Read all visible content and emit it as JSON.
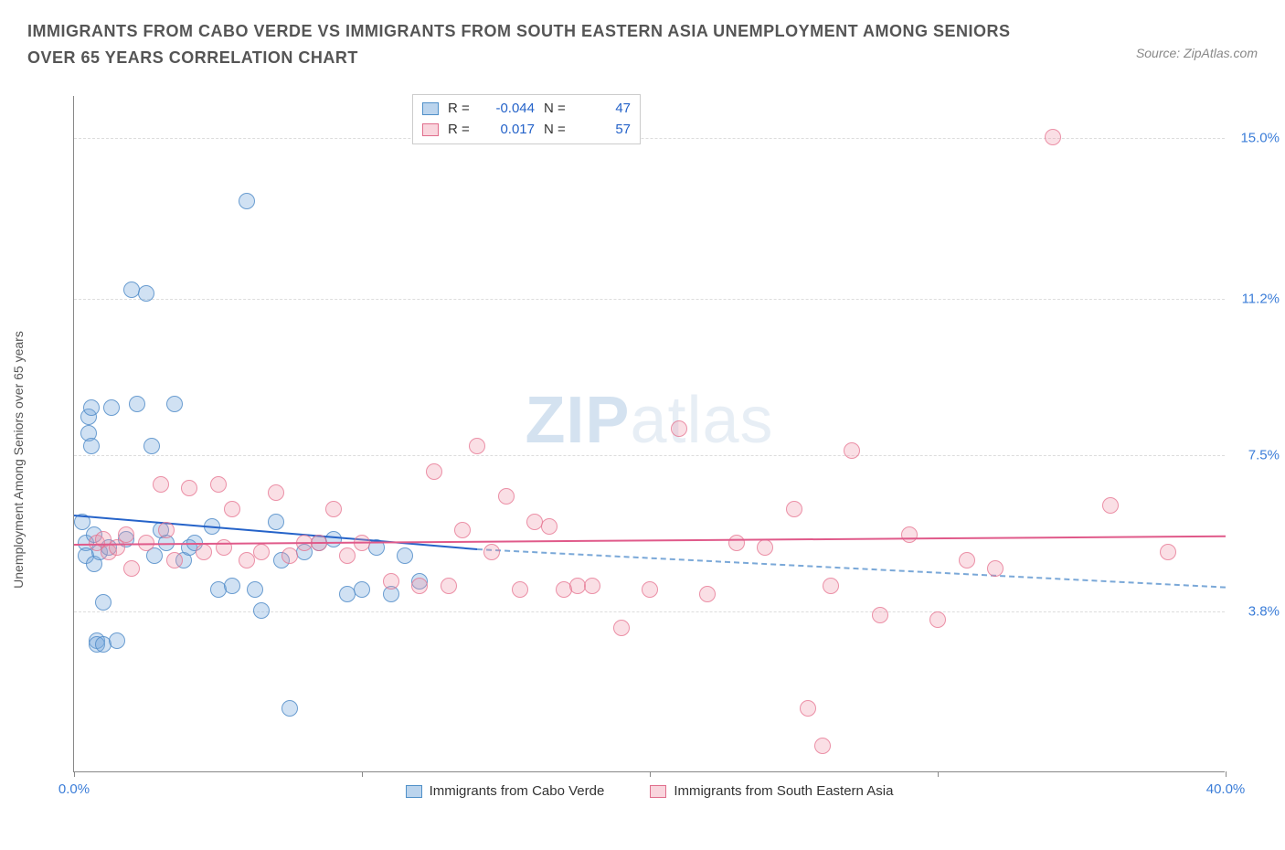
{
  "title": "IMMIGRANTS FROM CABO VERDE VS IMMIGRANTS FROM SOUTH EASTERN ASIA UNEMPLOYMENT AMONG SENIORS OVER 65 YEARS CORRELATION CHART",
  "source": "Source: ZipAtlas.com",
  "y_axis_label": "Unemployment Among Seniors over 65 years",
  "watermark_bold": "ZIP",
  "watermark_light": "atlas",
  "chart": {
    "type": "scatter",
    "xlim": [
      0,
      40
    ],
    "ylim": [
      0,
      16
    ],
    "x_ticks": [
      0,
      10,
      20,
      30,
      40
    ],
    "x_tick_labels": [
      "0.0%",
      "",
      "",
      "",
      "40.0%"
    ],
    "y_gridlines": [
      3.8,
      7.5,
      11.2,
      15.0
    ],
    "y_tick_labels": [
      "3.8%",
      "7.5%",
      "11.2%",
      "15.0%"
    ],
    "background_color": "#ffffff",
    "grid_color": "#dddddd",
    "series": [
      {
        "name": "Immigrants from Cabo Verde",
        "color_fill": "rgba(120,170,220,0.35)",
        "color_stroke": "#5090c8",
        "R": "-0.044",
        "N": "47",
        "trend": {
          "x1": 0,
          "y1": 6.1,
          "x2": 14,
          "y2": 5.3,
          "x2_dash": 40,
          "y2_dash": 4.4
        },
        "points": [
          [
            0.3,
            5.9
          ],
          [
            0.4,
            5.4
          ],
          [
            0.4,
            5.1
          ],
          [
            0.5,
            8.4
          ],
          [
            0.5,
            8.0
          ],
          [
            0.6,
            8.6
          ],
          [
            0.6,
            7.7
          ],
          [
            0.7,
            5.6
          ],
          [
            0.7,
            4.9
          ],
          [
            0.8,
            3.1
          ],
          [
            0.8,
            3.0
          ],
          [
            0.9,
            5.2
          ],
          [
            1.0,
            4.0
          ],
          [
            1.0,
            3.0
          ],
          [
            1.2,
            5.3
          ],
          [
            1.3,
            8.6
          ],
          [
            1.5,
            3.1
          ],
          [
            1.8,
            5.5
          ],
          [
            2.0,
            11.4
          ],
          [
            2.2,
            8.7
          ],
          [
            2.5,
            11.3
          ],
          [
            2.7,
            7.7
          ],
          [
            2.8,
            5.1
          ],
          [
            3.0,
            5.7
          ],
          [
            3.2,
            5.4
          ],
          [
            3.5,
            8.7
          ],
          [
            3.8,
            5.0
          ],
          [
            4.0,
            5.3
          ],
          [
            4.2,
            5.4
          ],
          [
            4.8,
            5.8
          ],
          [
            5.0,
            4.3
          ],
          [
            5.5,
            4.4
          ],
          [
            6.0,
            13.5
          ],
          [
            6.3,
            4.3
          ],
          [
            6.5,
            3.8
          ],
          [
            7.0,
            5.9
          ],
          [
            7.2,
            5.0
          ],
          [
            7.5,
            1.5
          ],
          [
            8.0,
            5.2
          ],
          [
            8.5,
            5.4
          ],
          [
            9.0,
            5.5
          ],
          [
            9.5,
            4.2
          ],
          [
            10.0,
            4.3
          ],
          [
            10.5,
            5.3
          ],
          [
            11.0,
            4.2
          ],
          [
            11.5,
            5.1
          ],
          [
            12.0,
            4.5
          ]
        ]
      },
      {
        "name": "Immigrants from South Eastern Asia",
        "color_fill": "rgba(240,150,170,0.3)",
        "color_stroke": "#e06e8c",
        "R": "0.017",
        "N": "57",
        "trend": {
          "x1": 0,
          "y1": 5.4,
          "x2": 40,
          "y2": 5.6
        },
        "points": [
          [
            0.8,
            5.4
          ],
          [
            1.0,
            5.5
          ],
          [
            1.2,
            5.2
          ],
          [
            1.5,
            5.3
          ],
          [
            1.8,
            5.6
          ],
          [
            2.0,
            4.8
          ],
          [
            2.5,
            5.4
          ],
          [
            3.0,
            6.8
          ],
          [
            3.2,
            5.7
          ],
          [
            3.5,
            5.0
          ],
          [
            4.0,
            6.7
          ],
          [
            4.5,
            5.2
          ],
          [
            5.0,
            6.8
          ],
          [
            5.2,
            5.3
          ],
          [
            5.5,
            6.2
          ],
          [
            6.0,
            5.0
          ],
          [
            6.5,
            5.2
          ],
          [
            7.0,
            6.6
          ],
          [
            7.5,
            5.1
          ],
          [
            8.0,
            5.4
          ],
          [
            8.5,
            5.4
          ],
          [
            9.0,
            6.2
          ],
          [
            9.5,
            5.1
          ],
          [
            10.0,
            5.4
          ],
          [
            11.0,
            4.5
          ],
          [
            12.0,
            4.4
          ],
          [
            12.5,
            7.1
          ],
          [
            13.0,
            4.4
          ],
          [
            13.5,
            5.7
          ],
          [
            14.0,
            7.7
          ],
          [
            14.5,
            5.2
          ],
          [
            15.0,
            6.5
          ],
          [
            15.5,
            4.3
          ],
          [
            16.0,
            5.9
          ],
          [
            16.5,
            5.8
          ],
          [
            17.0,
            4.3
          ],
          [
            17.5,
            4.4
          ],
          [
            18.0,
            4.4
          ],
          [
            19.0,
            3.4
          ],
          [
            20.0,
            4.3
          ],
          [
            21.0,
            8.1
          ],
          [
            22.0,
            4.2
          ],
          [
            23.0,
            5.4
          ],
          [
            24.0,
            5.3
          ],
          [
            25.0,
            6.2
          ],
          [
            25.5,
            1.5
          ],
          [
            26.0,
            0.6
          ],
          [
            26.3,
            4.4
          ],
          [
            27.0,
            7.6
          ],
          [
            28.0,
            3.7
          ],
          [
            29.0,
            5.6
          ],
          [
            30.0,
            3.6
          ],
          [
            31.0,
            5.0
          ],
          [
            32.0,
            4.8
          ],
          [
            34.0,
            15.0
          ],
          [
            36.0,
            6.3
          ],
          [
            38.0,
            5.2
          ]
        ]
      }
    ]
  },
  "legend_stats": {
    "rows": [
      {
        "swatch": "blue",
        "r_label": "R =",
        "r_val": "-0.044",
        "n_label": "N =",
        "n_val": "47"
      },
      {
        "swatch": "pink",
        "r_label": "R =",
        "r_val": "0.017",
        "n_label": "N =",
        "n_val": "57"
      }
    ]
  },
  "bottom_legend": [
    {
      "swatch": "blue",
      "label": "Immigrants from Cabo Verde"
    },
    {
      "swatch": "pink",
      "label": "Immigrants from South Eastern Asia"
    }
  ]
}
